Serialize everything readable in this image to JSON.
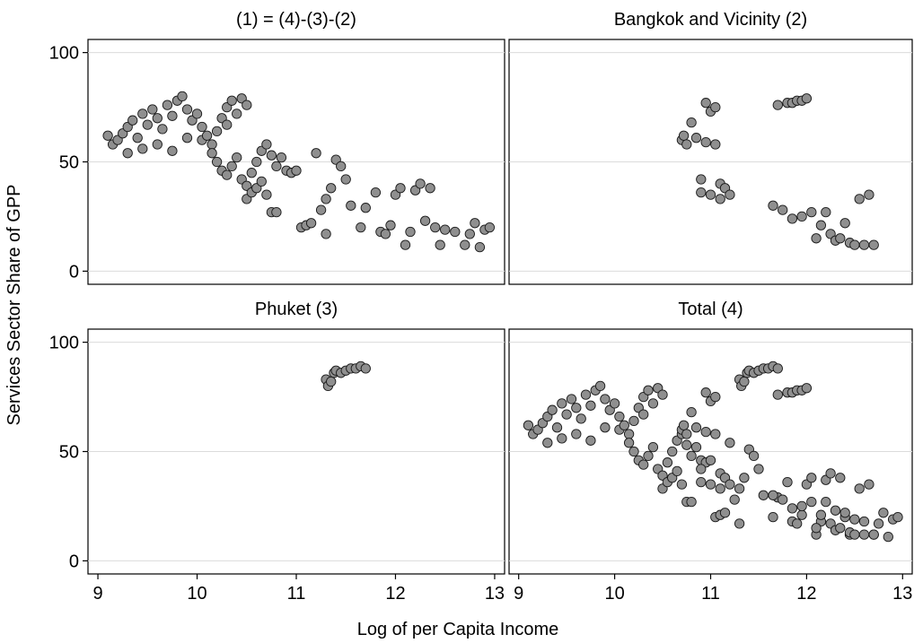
{
  "chart_data": {
    "type": "scatter",
    "xlabel": "Log of per Capita Income",
    "ylabel": "Services Sector Share of GPP",
    "xlim": [
      8.9,
      13.1
    ],
    "ylim": [
      -6,
      106
    ],
    "xticks": [
      9,
      10,
      11,
      12,
      13
    ],
    "yticks": [
      0,
      50,
      100
    ],
    "grid": "horizontal",
    "marker_color": "#8f8f8f",
    "marker_edge": "#1a1a1a",
    "panels": [
      {
        "title": "(1) = (4)-(3)-(2)",
        "points": [
          [
            9.1,
            62
          ],
          [
            9.15,
            58
          ],
          [
            9.2,
            60
          ],
          [
            9.25,
            63
          ],
          [
            9.3,
            66
          ],
          [
            9.35,
            69
          ],
          [
            9.4,
            61
          ],
          [
            9.45,
            72
          ],
          [
            9.5,
            67
          ],
          [
            9.55,
            74
          ],
          [
            9.6,
            70
          ],
          [
            9.65,
            65
          ],
          [
            9.7,
            76
          ],
          [
            9.75,
            71
          ],
          [
            9.8,
            78
          ],
          [
            9.85,
            80
          ],
          [
            9.9,
            74
          ],
          [
            9.95,
            69
          ],
          [
            10.0,
            72
          ],
          [
            10.05,
            66
          ],
          [
            9.3,
            54
          ],
          [
            9.45,
            56
          ],
          [
            9.6,
            58
          ],
          [
            9.75,
            55
          ],
          [
            9.9,
            61
          ],
          [
            10.05,
            60
          ],
          [
            10.15,
            58
          ],
          [
            10.2,
            64
          ],
          [
            10.25,
            70
          ],
          [
            10.3,
            75
          ],
          [
            10.35,
            78
          ],
          [
            10.4,
            72
          ],
          [
            10.45,
            79
          ],
          [
            10.5,
            76
          ],
          [
            10.3,
            67
          ],
          [
            10.1,
            62
          ],
          [
            10.15,
            54
          ],
          [
            10.2,
            50
          ],
          [
            10.25,
            46
          ],
          [
            10.3,
            44
          ],
          [
            10.35,
            48
          ],
          [
            10.4,
            52
          ],
          [
            10.45,
            42
          ],
          [
            10.5,
            39
          ],
          [
            10.55,
            45
          ],
          [
            10.6,
            50
          ],
          [
            10.65,
            55
          ],
          [
            10.7,
            58
          ],
          [
            10.75,
            53
          ],
          [
            10.8,
            48
          ],
          [
            10.85,
            52
          ],
          [
            10.9,
            46
          ],
          [
            10.95,
            45
          ],
          [
            10.5,
            33
          ],
          [
            10.55,
            36
          ],
          [
            10.6,
            38
          ],
          [
            10.65,
            41
          ],
          [
            10.7,
            35
          ],
          [
            10.75,
            27
          ],
          [
            10.8,
            27
          ],
          [
            11.0,
            46
          ],
          [
            11.05,
            20
          ],
          [
            11.1,
            21
          ],
          [
            11.15,
            22
          ],
          [
            11.2,
            54
          ],
          [
            11.25,
            28
          ],
          [
            11.3,
            33
          ],
          [
            11.3,
            17
          ],
          [
            11.35,
            38
          ],
          [
            11.4,
            51
          ],
          [
            11.45,
            48
          ],
          [
            11.5,
            42
          ],
          [
            11.55,
            30
          ],
          [
            11.65,
            20
          ],
          [
            11.7,
            29
          ],
          [
            11.8,
            36
          ],
          [
            11.85,
            18
          ],
          [
            11.9,
            17
          ],
          [
            11.95,
            21
          ],
          [
            12.0,
            35
          ],
          [
            12.05,
            38
          ],
          [
            12.1,
            12
          ],
          [
            12.15,
            18
          ],
          [
            12.2,
            37
          ],
          [
            12.25,
            40
          ],
          [
            12.3,
            23
          ],
          [
            12.35,
            38
          ],
          [
            12.4,
            20
          ],
          [
            12.45,
            12
          ],
          [
            12.5,
            19
          ],
          [
            12.6,
            18
          ],
          [
            12.7,
            12
          ],
          [
            12.75,
            17
          ],
          [
            12.8,
            22
          ],
          [
            12.85,
            11
          ],
          [
            12.9,
            19
          ],
          [
            12.95,
            20
          ]
        ]
      },
      {
        "title": "Bangkok and Vicinity (2)",
        "points": [
          [
            10.7,
            60
          ],
          [
            10.72,
            62
          ],
          [
            10.75,
            58
          ],
          [
            10.8,
            68
          ],
          [
            10.85,
            61
          ],
          [
            10.9,
            42
          ],
          [
            10.9,
            36
          ],
          [
            10.95,
            77
          ],
          [
            10.95,
            59
          ],
          [
            11.0,
            73
          ],
          [
            11.0,
            35
          ],
          [
            11.05,
            75
          ],
          [
            11.05,
            58
          ],
          [
            11.1,
            33
          ],
          [
            11.1,
            40
          ],
          [
            11.15,
            38
          ],
          [
            11.2,
            35
          ],
          [
            11.65,
            30
          ],
          [
            11.7,
            76
          ],
          [
            11.75,
            28
          ],
          [
            11.8,
            77
          ],
          [
            11.85,
            77
          ],
          [
            11.9,
            78
          ],
          [
            11.95,
            78
          ],
          [
            11.95,
            25
          ],
          [
            11.85,
            24
          ],
          [
            12.0,
            79
          ],
          [
            12.05,
            27
          ],
          [
            12.1,
            15
          ],
          [
            12.15,
            21
          ],
          [
            12.2,
            27
          ],
          [
            12.25,
            17
          ],
          [
            12.3,
            14
          ],
          [
            12.35,
            15
          ],
          [
            12.4,
            22
          ],
          [
            12.45,
            13
          ],
          [
            12.5,
            12
          ],
          [
            12.55,
            33
          ],
          [
            12.6,
            12
          ],
          [
            12.65,
            35
          ],
          [
            12.7,
            12
          ]
        ]
      },
      {
        "title": "Phuket (3)",
        "points": [
          [
            11.3,
            83
          ],
          [
            11.32,
            80
          ],
          [
            11.35,
            82
          ],
          [
            11.38,
            86
          ],
          [
            11.4,
            87
          ],
          [
            11.45,
            86
          ],
          [
            11.5,
            87
          ],
          [
            11.55,
            88
          ],
          [
            11.6,
            88
          ],
          [
            11.65,
            89
          ],
          [
            11.7,
            88
          ]
        ]
      },
      {
        "title": "Total (4)",
        "points": [
          [
            9.1,
            62
          ],
          [
            9.15,
            58
          ],
          [
            9.2,
            60
          ],
          [
            9.25,
            63
          ],
          [
            9.3,
            66
          ],
          [
            9.35,
            69
          ],
          [
            9.4,
            61
          ],
          [
            9.45,
            72
          ],
          [
            9.5,
            67
          ],
          [
            9.55,
            74
          ],
          [
            9.6,
            70
          ],
          [
            9.65,
            65
          ],
          [
            9.7,
            76
          ],
          [
            9.75,
            71
          ],
          [
            9.8,
            78
          ],
          [
            9.85,
            80
          ],
          [
            9.9,
            74
          ],
          [
            9.95,
            69
          ],
          [
            10.0,
            72
          ],
          [
            10.05,
            66
          ],
          [
            9.3,
            54
          ],
          [
            9.45,
            56
          ],
          [
            9.6,
            58
          ],
          [
            9.75,
            55
          ],
          [
            9.9,
            61
          ],
          [
            10.05,
            60
          ],
          [
            10.15,
            58
          ],
          [
            10.2,
            64
          ],
          [
            10.25,
            70
          ],
          [
            10.3,
            75
          ],
          [
            10.35,
            78
          ],
          [
            10.4,
            72
          ],
          [
            10.45,
            79
          ],
          [
            10.5,
            76
          ],
          [
            10.3,
            67
          ],
          [
            10.1,
            62
          ],
          [
            10.15,
            54
          ],
          [
            10.2,
            50
          ],
          [
            10.25,
            46
          ],
          [
            10.3,
            44
          ],
          [
            10.35,
            48
          ],
          [
            10.4,
            52
          ],
          [
            10.45,
            42
          ],
          [
            10.5,
            39
          ],
          [
            10.55,
            45
          ],
          [
            10.6,
            50
          ],
          [
            10.65,
            55
          ],
          [
            10.7,
            58
          ],
          [
            10.75,
            53
          ],
          [
            10.8,
            48
          ],
          [
            10.85,
            52
          ],
          [
            10.9,
            46
          ],
          [
            10.95,
            45
          ],
          [
            10.5,
            33
          ],
          [
            10.55,
            36
          ],
          [
            10.6,
            38
          ],
          [
            10.65,
            41
          ],
          [
            10.7,
            35
          ],
          [
            10.75,
            27
          ],
          [
            10.8,
            27
          ],
          [
            11.0,
            46
          ],
          [
            11.05,
            20
          ],
          [
            11.1,
            21
          ],
          [
            11.15,
            22
          ],
          [
            11.2,
            54
          ],
          [
            11.25,
            28
          ],
          [
            11.3,
            33
          ],
          [
            11.3,
            17
          ],
          [
            11.35,
            38
          ],
          [
            11.4,
            51
          ],
          [
            11.45,
            48
          ],
          [
            11.5,
            42
          ],
          [
            11.55,
            30
          ],
          [
            11.65,
            20
          ],
          [
            11.7,
            29
          ],
          [
            11.8,
            36
          ],
          [
            11.85,
            18
          ],
          [
            11.9,
            17
          ],
          [
            11.95,
            21
          ],
          [
            12.0,
            35
          ],
          [
            12.05,
            38
          ],
          [
            12.1,
            12
          ],
          [
            12.15,
            18
          ],
          [
            12.2,
            37
          ],
          [
            12.25,
            40
          ],
          [
            12.3,
            23
          ],
          [
            12.35,
            38
          ],
          [
            12.4,
            20
          ],
          [
            12.45,
            12
          ],
          [
            12.5,
            19
          ],
          [
            12.6,
            18
          ],
          [
            12.7,
            12
          ],
          [
            12.75,
            17
          ],
          [
            12.8,
            22
          ],
          [
            12.85,
            11
          ],
          [
            12.9,
            19
          ],
          [
            12.95,
            20
          ],
          [
            10.7,
            60
          ],
          [
            10.72,
            62
          ],
          [
            10.75,
            58
          ],
          [
            10.8,
            68
          ],
          [
            10.85,
            61
          ],
          [
            10.9,
            42
          ],
          [
            10.9,
            36
          ],
          [
            10.95,
            77
          ],
          [
            10.95,
            59
          ],
          [
            11.0,
            73
          ],
          [
            11.0,
            35
          ],
          [
            11.05,
            75
          ],
          [
            11.05,
            58
          ],
          [
            11.1,
            33
          ],
          [
            11.1,
            40
          ],
          [
            11.15,
            38
          ],
          [
            11.2,
            35
          ],
          [
            11.65,
            30
          ],
          [
            11.7,
            76
          ],
          [
            11.75,
            28
          ],
          [
            11.8,
            77
          ],
          [
            11.85,
            77
          ],
          [
            11.9,
            78
          ],
          [
            11.95,
            78
          ],
          [
            11.95,
            25
          ],
          [
            11.85,
            24
          ],
          [
            12.0,
            79
          ],
          [
            12.05,
            27
          ],
          [
            12.1,
            15
          ],
          [
            12.15,
            21
          ],
          [
            12.2,
            27
          ],
          [
            12.25,
            17
          ],
          [
            12.3,
            14
          ],
          [
            12.35,
            15
          ],
          [
            12.4,
            22
          ],
          [
            12.45,
            13
          ],
          [
            12.5,
            12
          ],
          [
            12.55,
            33
          ],
          [
            12.6,
            12
          ],
          [
            12.65,
            35
          ],
          [
            12.7,
            12
          ],
          [
            11.3,
            83
          ],
          [
            11.32,
            80
          ],
          [
            11.35,
            82
          ],
          [
            11.38,
            86
          ],
          [
            11.4,
            87
          ],
          [
            11.45,
            86
          ],
          [
            11.5,
            87
          ],
          [
            11.55,
            88
          ],
          [
            11.6,
            88
          ],
          [
            11.65,
            89
          ],
          [
            11.7,
            88
          ]
        ]
      }
    ]
  }
}
